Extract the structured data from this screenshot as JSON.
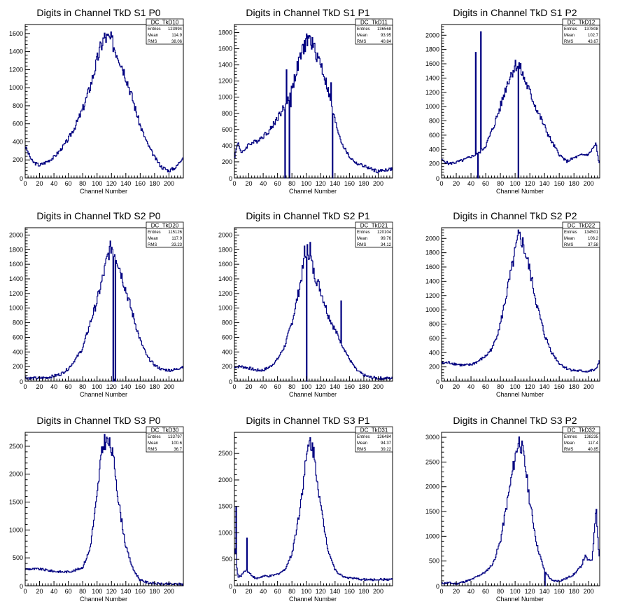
{
  "x_axis_label": "Channel Number",
  "stats_labels": {
    "entries": "Entries",
    "mean": "Mean",
    "rms": "RMS"
  },
  "colors": {
    "line": "#000080",
    "axis": "#000000",
    "background": "#ffffff"
  },
  "chart_data": [
    {
      "type": "histogram",
      "title": "Digits in Channel TkD S1 P0",
      "xlabel": "Channel Number",
      "ylabel": "",
      "stats": {
        "name": "DC_TkD10",
        "entries": "123994",
        "mean": "114.9",
        "rms": "38.06"
      },
      "xlim": [
        0,
        220
      ],
      "ylim": [
        0,
        1700
      ],
      "x_ticks": [
        0,
        20,
        40,
        60,
        80,
        100,
        120,
        140,
        160,
        180,
        200
      ],
      "y_ticks": [
        200,
        400,
        600,
        800,
        1000,
        1200,
        1400,
        1600
      ],
      "profile": [
        [
          0,
          350
        ],
        [
          10,
          180
        ],
        [
          20,
          140
        ],
        [
          30,
          180
        ],
        [
          40,
          230
        ],
        [
          50,
          320
        ],
        [
          60,
          430
        ],
        [
          70,
          580
        ],
        [
          80,
          760
        ],
        [
          90,
          1000
        ],
        [
          100,
          1300
        ],
        [
          105,
          1450
        ],
        [
          110,
          1560
        ],
        [
          120,
          1530
        ],
        [
          125,
          1430
        ],
        [
          130,
          1350
        ],
        [
          140,
          1130
        ],
        [
          150,
          860
        ],
        [
          160,
          580
        ],
        [
          170,
          380
        ],
        [
          180,
          230
        ],
        [
          190,
          120
        ],
        [
          200,
          80
        ],
        [
          210,
          120
        ],
        [
          219,
          230
        ]
      ]
    },
    {
      "type": "histogram",
      "title": "Digits in Channel TkD S1 P1",
      "xlabel": "Channel Number",
      "ylabel": "",
      "stats": {
        "name": "DC_TkD11",
        "entries": "136568",
        "mean": "93.95",
        "rms": "40.84"
      },
      "xlim": [
        0,
        220
      ],
      "ylim": [
        0,
        1900
      ],
      "x_ticks": [
        0,
        20,
        40,
        60,
        80,
        100,
        120,
        140,
        160,
        180,
        200
      ],
      "y_ticks": [
        200,
        400,
        600,
        800,
        1000,
        1200,
        1400,
        1600,
        1800
      ],
      "profile": [
        [
          0,
          250
        ],
        [
          5,
          450
        ],
        [
          10,
          300
        ],
        [
          20,
          420
        ],
        [
          30,
          450
        ],
        [
          40,
          520
        ],
        [
          50,
          600
        ],
        [
          60,
          750
        ],
        [
          70,
          880
        ],
        [
          80,
          1100
        ],
        [
          90,
          1450
        ],
        [
          100,
          1700
        ],
        [
          105,
          1720
        ],
        [
          110,
          1620
        ],
        [
          120,
          1420
        ],
        [
          130,
          1100
        ],
        [
          140,
          700
        ],
        [
          150,
          420
        ],
        [
          160,
          260
        ],
        [
          170,
          180
        ],
        [
          180,
          150
        ],
        [
          190,
          110
        ],
        [
          200,
          80
        ],
        [
          210,
          100
        ],
        [
          219,
          110
        ]
      ],
      "spikes": [
        [
          72,
          1340
        ],
        [
          78,
          880
        ],
        [
          134,
          1180
        ]
      ],
      "dips": [
        [
          70,
          0
        ],
        [
          76,
          0
        ],
        [
          136,
          0
        ]
      ]
    },
    {
      "type": "histogram",
      "title": "Digits in Channel TkD S1 P2",
      "xlabel": "Channel Number",
      "ylabel": "",
      "stats": {
        "name": "DC_TkD12",
        "entries": "137808",
        "mean": "102.7",
        "rms": "43.67"
      },
      "xlim": [
        0,
        215
      ],
      "ylim": [
        0,
        2150
      ],
      "x_ticks": [
        0,
        20,
        40,
        60,
        80,
        100,
        120,
        140,
        160,
        180,
        200
      ],
      "y_ticks": [
        200,
        400,
        600,
        800,
        1000,
        1200,
        1400,
        1600,
        1800,
        2000
      ],
      "profile": [
        [
          0,
          250
        ],
        [
          10,
          200
        ],
        [
          20,
          220
        ],
        [
          30,
          250
        ],
        [
          40,
          300
        ],
        [
          50,
          340
        ],
        [
          60,
          450
        ],
        [
          70,
          700
        ],
        [
          80,
          1000
        ],
        [
          90,
          1350
        ],
        [
          100,
          1580
        ],
        [
          105,
          1590
        ],
        [
          110,
          1450
        ],
        [
          120,
          1200
        ],
        [
          130,
          950
        ],
        [
          140,
          720
        ],
        [
          150,
          500
        ],
        [
          160,
          330
        ],
        [
          170,
          230
        ],
        [
          180,
          280
        ],
        [
          190,
          320
        ],
        [
          200,
          330
        ],
        [
          210,
          480
        ],
        [
          214,
          200
        ]
      ],
      "spikes": [
        [
          46,
          1760
        ],
        [
          53,
          2050
        ]
      ],
      "dips": [
        [
          104,
          0
        ],
        [
          49,
          0
        ]
      ]
    },
    {
      "type": "histogram",
      "title": "Digits in Channel TkD S2 P0",
      "xlabel": "Channel Number",
      "ylabel": "",
      "stats": {
        "name": "DC_TkD20",
        "entries": "115126",
        "mean": "117.9",
        "rms": "33.23"
      },
      "xlim": [
        0,
        220
      ],
      "ylim": [
        0,
        2100
      ],
      "x_ticks": [
        0,
        20,
        40,
        60,
        80,
        100,
        120,
        140,
        160,
        180,
        200
      ],
      "y_ticks": [
        200,
        400,
        600,
        800,
        1000,
        1200,
        1400,
        1600,
        1800,
        2000
      ],
      "profile": [
        [
          0,
          50
        ],
        [
          10,
          40
        ],
        [
          20,
          40
        ],
        [
          30,
          50
        ],
        [
          40,
          70
        ],
        [
          50,
          100
        ],
        [
          60,
          170
        ],
        [
          70,
          300
        ],
        [
          80,
          450
        ],
        [
          90,
          780
        ],
        [
          100,
          1100
        ],
        [
          110,
          1500
        ],
        [
          115,
          1720
        ],
        [
          120,
          1850
        ],
        [
          125,
          1750
        ],
        [
          130,
          1600
        ],
        [
          140,
          1250
        ],
        [
          150,
          900
        ],
        [
          160,
          560
        ],
        [
          170,
          330
        ],
        [
          180,
          220
        ],
        [
          190,
          160
        ],
        [
          200,
          150
        ],
        [
          210,
          160
        ],
        [
          219,
          200
        ]
      ],
      "dips": [
        [
          122,
          0
        ],
        [
          125,
          0
        ]
      ]
    },
    {
      "type": "histogram",
      "title": "Digits in Channel TkD S2 P1",
      "xlabel": "Channel Number",
      "ylabel": "",
      "stats": {
        "name": "DC_TkD21",
        "entries": "120104",
        "mean": "99.76",
        "rms": "34.12"
      },
      "xlim": [
        0,
        220
      ],
      "ylim": [
        0,
        2100
      ],
      "x_ticks": [
        0,
        20,
        40,
        60,
        80,
        100,
        120,
        140,
        160,
        180,
        200
      ],
      "y_ticks": [
        200,
        400,
        600,
        800,
        1000,
        1200,
        1400,
        1600,
        1800,
        2000
      ],
      "profile": [
        [
          0,
          200
        ],
        [
          10,
          200
        ],
        [
          20,
          180
        ],
        [
          30,
          150
        ],
        [
          40,
          150
        ],
        [
          50,
          200
        ],
        [
          60,
          300
        ],
        [
          70,
          480
        ],
        [
          80,
          800
        ],
        [
          90,
          1250
        ],
        [
          100,
          1800
        ],
        [
          105,
          1750
        ],
        [
          110,
          1500
        ],
        [
          120,
          1250
        ],
        [
          130,
          920
        ],
        [
          140,
          700
        ],
        [
          150,
          500
        ],
        [
          160,
          300
        ],
        [
          170,
          150
        ],
        [
          180,
          80
        ],
        [
          190,
          50
        ],
        [
          200,
          40
        ],
        [
          210,
          40
        ],
        [
          219,
          40
        ]
      ],
      "spikes": [
        [
          97,
          1850
        ],
        [
          105,
          1900
        ],
        [
          148,
          1100
        ]
      ],
      "dips": [
        [
          100,
          0
        ]
      ]
    },
    {
      "type": "histogram",
      "title": "Digits in Channel TkD S2 P2",
      "xlabel": "Channel Number",
      "ylabel": "",
      "stats": {
        "name": "DC_TkD22",
        "entries": "134501",
        "mean": "106.2",
        "rms": "37.58"
      },
      "xlim": [
        0,
        215
      ],
      "ylim": [
        0,
        2150
      ],
      "x_ticks": [
        0,
        20,
        40,
        60,
        80,
        100,
        120,
        140,
        160,
        180,
        200
      ],
      "y_ticks": [
        200,
        400,
        600,
        800,
        1000,
        1200,
        1400,
        1600,
        1800,
        2000
      ],
      "profile": [
        [
          0,
          250
        ],
        [
          10,
          260
        ],
        [
          20,
          240
        ],
        [
          30,
          220
        ],
        [
          40,
          230
        ],
        [
          50,
          280
        ],
        [
          60,
          350
        ],
        [
          70,
          480
        ],
        [
          80,
          800
        ],
        [
          90,
          1300
        ],
        [
          100,
          1800
        ],
        [
          105,
          2030
        ],
        [
          110,
          1950
        ],
        [
          120,
          1550
        ],
        [
          130,
          1050
        ],
        [
          140,
          650
        ],
        [
          150,
          400
        ],
        [
          160,
          250
        ],
        [
          170,
          180
        ],
        [
          180,
          150
        ],
        [
          190,
          140
        ],
        [
          200,
          140
        ],
        [
          210,
          160
        ],
        [
          214,
          280
        ]
      ]
    },
    {
      "type": "histogram",
      "title": "Digits in Channel TkD S3 P0",
      "xlabel": "Channel Number",
      "ylabel": "",
      "stats": {
        "name": "DC_TkD30",
        "entries": "133797",
        "mean": "100.6",
        "rms": "36.7"
      },
      "xlim": [
        0,
        220
      ],
      "ylim": [
        0,
        2750
      ],
      "x_ticks": [
        0,
        20,
        40,
        60,
        80,
        100,
        120,
        140,
        160,
        180,
        200
      ],
      "y_ticks": [
        500,
        1000,
        1500,
        2000,
        2500
      ],
      "profile": [
        [
          0,
          300
        ],
        [
          10,
          300
        ],
        [
          20,
          300
        ],
        [
          30,
          280
        ],
        [
          40,
          260
        ],
        [
          50,
          250
        ],
        [
          60,
          250
        ],
        [
          70,
          280
        ],
        [
          80,
          330
        ],
        [
          90,
          650
        ],
        [
          100,
          1600
        ],
        [
          105,
          2250
        ],
        [
          110,
          2600
        ],
        [
          115,
          2580
        ],
        [
          120,
          2450
        ],
        [
          125,
          2100
        ],
        [
          130,
          1500
        ],
        [
          140,
          700
        ],
        [
          150,
          300
        ],
        [
          160,
          100
        ],
        [
          170,
          60
        ],
        [
          180,
          40
        ],
        [
          190,
          30
        ],
        [
          200,
          30
        ],
        [
          210,
          30
        ],
        [
          219,
          30
        ]
      ]
    },
    {
      "type": "histogram",
      "title": "Digits in Channel TkD S3 P1",
      "xlabel": "Channel Number",
      "ylabel": "",
      "stats": {
        "name": "DC_TkD31",
        "entries": "136484",
        "mean": "94.37",
        "rms": "39.22"
      },
      "xlim": [
        0,
        220
      ],
      "ylim": [
        0,
        2900
      ],
      "x_ticks": [
        0,
        20,
        40,
        60,
        80,
        100,
        120,
        140,
        160,
        180,
        200
      ],
      "y_ticks": [
        500,
        1000,
        1500,
        2000,
        2500
      ],
      "profile": [
        [
          0,
          800
        ],
        [
          5,
          150
        ],
        [
          10,
          200
        ],
        [
          15,
          300
        ],
        [
          20,
          250
        ],
        [
          30,
          130
        ],
        [
          40,
          180
        ],
        [
          50,
          180
        ],
        [
          60,
          220
        ],
        [
          70,
          300
        ],
        [
          80,
          600
        ],
        [
          90,
          1350
        ],
        [
          100,
          2400
        ],
        [
          105,
          2750
        ],
        [
          110,
          2550
        ],
        [
          115,
          2050
        ],
        [
          120,
          1500
        ],
        [
          130,
          700
        ],
        [
          140,
          300
        ],
        [
          150,
          180
        ],
        [
          160,
          150
        ],
        [
          170,
          130
        ],
        [
          180,
          120
        ],
        [
          190,
          110
        ],
        [
          200,
          120
        ],
        [
          210,
          120
        ],
        [
          219,
          120
        ]
      ],
      "spikes": [
        [
          2,
          1500
        ],
        [
          17,
          900
        ]
      ]
    },
    {
      "type": "histogram",
      "title": "Digits in Channel TkD S3 P2",
      "xlabel": "Channel Number",
      "ylabel": "",
      "stats": {
        "name": "DC_TkD32",
        "entries": "138235",
        "mean": "117.4",
        "rms": "40.85"
      },
      "xlim": [
        0,
        215
      ],
      "ylim": [
        0,
        3100
      ],
      "x_ticks": [
        0,
        20,
        40,
        60,
        80,
        100,
        120,
        140,
        160,
        180,
        200
      ],
      "y_ticks": [
        500,
        1000,
        1500,
        2000,
        2500,
        3000
      ],
      "profile": [
        [
          0,
          50
        ],
        [
          10,
          60
        ],
        [
          20,
          40
        ],
        [
          30,
          80
        ],
        [
          40,
          120
        ],
        [
          50,
          200
        ],
        [
          60,
          280
        ],
        [
          70,
          450
        ],
        [
          80,
          900
        ],
        [
          90,
          1750
        ],
        [
          100,
          2600
        ],
        [
          105,
          2950
        ],
        [
          110,
          2750
        ],
        [
          115,
          2300
        ],
        [
          120,
          1700
        ],
        [
          130,
          800
        ],
        [
          140,
          300
        ],
        [
          150,
          100
        ],
        [
          160,
          100
        ],
        [
          170,
          150
        ],
        [
          180,
          230
        ],
        [
          190,
          400
        ],
        [
          195,
          600
        ],
        [
          200,
          500
        ],
        [
          205,
          550
        ],
        [
          210,
          1650
        ],
        [
          214,
          600
        ]
      ],
      "dips": [
        [
          140,
          0
        ]
      ]
    }
  ]
}
